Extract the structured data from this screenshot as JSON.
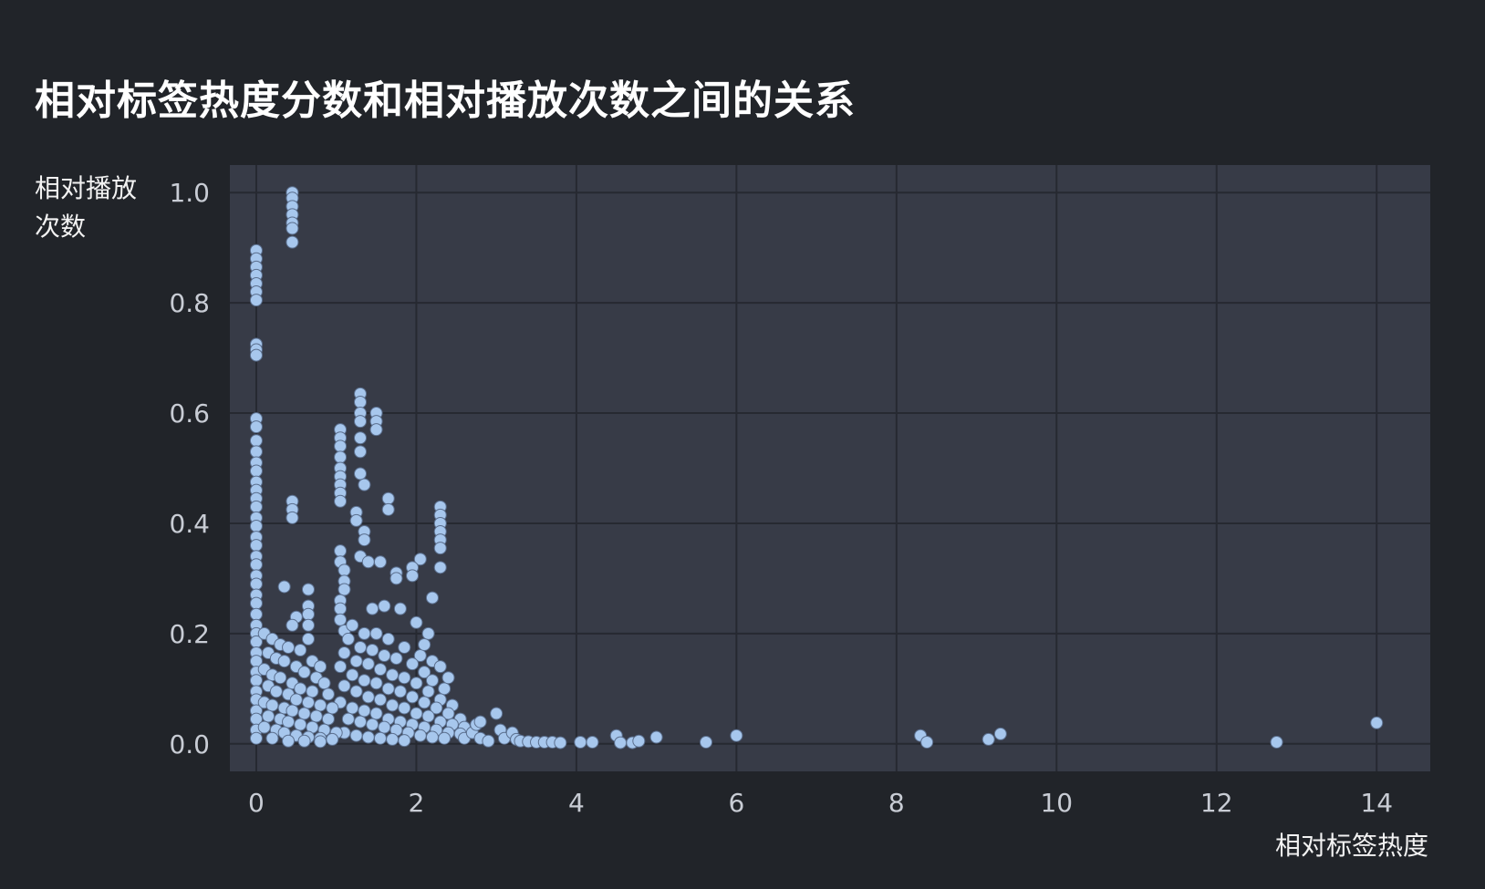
{
  "chart_data": {
    "type": "scatter",
    "title": "相对标签热度分数和相对播放次数之间的关系",
    "xlabel": "相对标签热度",
    "ylabel": "相对播放次数",
    "xlim": [
      -0.33,
      14.67
    ],
    "ylim": [
      -0.05,
      1.05
    ],
    "xticks": [
      0,
      2,
      4,
      6,
      8,
      10,
      12,
      14
    ],
    "yticks": [
      0.0,
      0.2,
      0.4,
      0.6,
      0.8,
      1.0
    ],
    "ytick_labels": [
      "0.0",
      "0.2",
      "0.4",
      "0.6",
      "0.8",
      "1.0"
    ],
    "grid": true,
    "point_color": "#a7c7ed",
    "point_edge": "#5b6f8e",
    "plot_background": "#373b47",
    "figure_background": "#212429",
    "points": [
      [
        0.0,
        0.895
      ],
      [
        0.0,
        0.88
      ],
      [
        0.0,
        0.865
      ],
      [
        0.0,
        0.85
      ],
      [
        0.0,
        0.835
      ],
      [
        0.0,
        0.82
      ],
      [
        0.0,
        0.805
      ],
      [
        0.0,
        0.725
      ],
      [
        0.0,
        0.715
      ],
      [
        0.0,
        0.705
      ],
      [
        0.45,
        1.0
      ],
      [
        0.45,
        0.99
      ],
      [
        0.45,
        0.975
      ],
      [
        0.45,
        0.96
      ],
      [
        0.45,
        0.945
      ],
      [
        0.45,
        0.935
      ],
      [
        0.45,
        0.91
      ],
      [
        0.0,
        0.59
      ],
      [
        0.0,
        0.575
      ],
      [
        0.0,
        0.55
      ],
      [
        0.0,
        0.53
      ],
      [
        0.0,
        0.51
      ],
      [
        0.0,
        0.495
      ],
      [
        0.0,
        0.475
      ],
      [
        0.0,
        0.46
      ],
      [
        0.0,
        0.445
      ],
      [
        0.0,
        0.43
      ],
      [
        0.0,
        0.41
      ],
      [
        0.0,
        0.395
      ],
      [
        0.0,
        0.375
      ],
      [
        0.0,
        0.36
      ],
      [
        0.0,
        0.34
      ],
      [
        0.0,
        0.325
      ],
      [
        0.0,
        0.305
      ],
      [
        0.0,
        0.29
      ],
      [
        0.0,
        0.27
      ],
      [
        0.0,
        0.255
      ],
      [
        0.0,
        0.235
      ],
      [
        0.0,
        0.215
      ],
      [
        0.0,
        0.2
      ],
      [
        0.0,
        0.185
      ],
      [
        0.0,
        0.165
      ],
      [
        0.0,
        0.15
      ],
      [
        0.0,
        0.13
      ],
      [
        0.0,
        0.115
      ],
      [
        0.0,
        0.095
      ],
      [
        0.0,
        0.08
      ],
      [
        0.0,
        0.06
      ],
      [
        0.0,
        0.045
      ],
      [
        0.0,
        0.025
      ],
      [
        0.0,
        0.01
      ],
      [
        0.45,
        0.44
      ],
      [
        0.45,
        0.425
      ],
      [
        0.45,
        0.41
      ],
      [
        0.35,
        0.285
      ],
      [
        0.65,
        0.28
      ],
      [
        0.65,
        0.25
      ],
      [
        0.65,
        0.235
      ],
      [
        0.65,
        0.215
      ],
      [
        0.65,
        0.19
      ],
      [
        0.5,
        0.23
      ],
      [
        0.45,
        0.215
      ],
      [
        1.05,
        0.57
      ],
      [
        1.05,
        0.555
      ],
      [
        1.05,
        0.54
      ],
      [
        1.05,
        0.52
      ],
      [
        1.05,
        0.5
      ],
      [
        1.05,
        0.485
      ],
      [
        1.05,
        0.47
      ],
      [
        1.05,
        0.455
      ],
      [
        1.05,
        0.44
      ],
      [
        1.3,
        0.635
      ],
      [
        1.3,
        0.62
      ],
      [
        1.3,
        0.6
      ],
      [
        1.3,
        0.585
      ],
      [
        1.3,
        0.555
      ],
      [
        1.3,
        0.53
      ],
      [
        1.3,
        0.49
      ],
      [
        1.5,
        0.6
      ],
      [
        1.5,
        0.585
      ],
      [
        1.5,
        0.57
      ],
      [
        1.35,
        0.47
      ],
      [
        1.65,
        0.445
      ],
      [
        1.65,
        0.425
      ],
      [
        1.25,
        0.42
      ],
      [
        1.25,
        0.405
      ],
      [
        1.35,
        0.385
      ],
      [
        1.35,
        0.37
      ],
      [
        1.3,
        0.34
      ],
      [
        2.3,
        0.43
      ],
      [
        2.3,
        0.415
      ],
      [
        2.3,
        0.4
      ],
      [
        2.3,
        0.385
      ],
      [
        2.3,
        0.37
      ],
      [
        2.3,
        0.355
      ],
      [
        2.3,
        0.32
      ],
      [
        2.05,
        0.335
      ],
      [
        1.95,
        0.32
      ],
      [
        1.95,
        0.305
      ],
      [
        1.75,
        0.31
      ],
      [
        1.75,
        0.3
      ],
      [
        1.55,
        0.33
      ],
      [
        1.4,
        0.33
      ],
      [
        2.2,
        0.265
      ],
      [
        1.8,
        0.245
      ],
      [
        1.6,
        0.25
      ],
      [
        1.45,
        0.245
      ],
      [
        2.0,
        0.22
      ],
      [
        1.05,
        0.35
      ],
      [
        1.05,
        0.33
      ],
      [
        1.1,
        0.315
      ],
      [
        1.1,
        0.295
      ],
      [
        1.1,
        0.28
      ],
      [
        1.05,
        0.26
      ],
      [
        1.05,
        0.245
      ],
      [
        1.05,
        0.225
      ],
      [
        1.1,
        0.205
      ],
      [
        1.2,
        0.215
      ],
      [
        1.35,
        0.2
      ],
      [
        1.5,
        0.2
      ],
      [
        1.65,
        0.19
      ],
      [
        1.85,
        0.175
      ],
      [
        2.05,
        0.16
      ],
      [
        1.15,
        0.19
      ],
      [
        1.3,
        0.175
      ],
      [
        1.45,
        0.17
      ],
      [
        1.6,
        0.16
      ],
      [
        1.75,
        0.155
      ],
      [
        1.95,
        0.145
      ],
      [
        2.1,
        0.13
      ],
      [
        2.2,
        0.115
      ],
      [
        2.35,
        0.1
      ],
      [
        1.1,
        0.165
      ],
      [
        1.25,
        0.15
      ],
      [
        1.4,
        0.145
      ],
      [
        1.55,
        0.135
      ],
      [
        1.7,
        0.125
      ],
      [
        1.85,
        0.12
      ],
      [
        2.0,
        0.11
      ],
      [
        2.15,
        0.095
      ],
      [
        2.3,
        0.08
      ],
      [
        2.45,
        0.07
      ],
      [
        1.05,
        0.14
      ],
      [
        1.2,
        0.125
      ],
      [
        1.35,
        0.115
      ],
      [
        1.5,
        0.11
      ],
      [
        1.65,
        0.1
      ],
      [
        1.8,
        0.095
      ],
      [
        1.95,
        0.085
      ],
      [
        2.1,
        0.075
      ],
      [
        2.25,
        0.065
      ],
      [
        2.4,
        0.055
      ],
      [
        2.55,
        0.045
      ],
      [
        1.1,
        0.105
      ],
      [
        1.25,
        0.095
      ],
      [
        1.4,
        0.085
      ],
      [
        1.55,
        0.08
      ],
      [
        1.7,
        0.07
      ],
      [
        1.85,
        0.065
      ],
      [
        2.0,
        0.055
      ],
      [
        2.15,
        0.05
      ],
      [
        2.3,
        0.04
      ],
      [
        2.45,
        0.035
      ],
      [
        2.6,
        0.03
      ],
      [
        1.05,
        0.075
      ],
      [
        1.2,
        0.065
      ],
      [
        1.35,
        0.06
      ],
      [
        1.5,
        0.055
      ],
      [
        1.65,
        0.045
      ],
      [
        1.8,
        0.04
      ],
      [
        1.95,
        0.035
      ],
      [
        2.1,
        0.03
      ],
      [
        2.25,
        0.025
      ],
      [
        2.4,
        0.02
      ],
      [
        2.55,
        0.018
      ],
      [
        1.15,
        0.045
      ],
      [
        1.3,
        0.04
      ],
      [
        1.45,
        0.035
      ],
      [
        1.6,
        0.03
      ],
      [
        1.75,
        0.025
      ],
      [
        1.9,
        0.02
      ],
      [
        2.05,
        0.015
      ],
      [
        2.2,
        0.012
      ],
      [
        2.35,
        0.01
      ],
      [
        1.1,
        0.02
      ],
      [
        1.25,
        0.015
      ],
      [
        1.4,
        0.012
      ],
      [
        1.55,
        0.01
      ],
      [
        1.7,
        0.008
      ],
      [
        1.85,
        0.006
      ],
      [
        0.1,
        0.2
      ],
      [
        0.2,
        0.19
      ],
      [
        0.3,
        0.18
      ],
      [
        0.4,
        0.175
      ],
      [
        0.55,
        0.17
      ],
      [
        0.7,
        0.15
      ],
      [
        0.8,
        0.14
      ],
      [
        0.15,
        0.165
      ],
      [
        0.25,
        0.155
      ],
      [
        0.35,
        0.15
      ],
      [
        0.5,
        0.14
      ],
      [
        0.6,
        0.13
      ],
      [
        0.75,
        0.12
      ],
      [
        0.85,
        0.11
      ],
      [
        0.1,
        0.135
      ],
      [
        0.2,
        0.125
      ],
      [
        0.3,
        0.12
      ],
      [
        0.45,
        0.11
      ],
      [
        0.55,
        0.1
      ],
      [
        0.7,
        0.095
      ],
      [
        0.9,
        0.09
      ],
      [
        0.15,
        0.105
      ],
      [
        0.25,
        0.095
      ],
      [
        0.4,
        0.09
      ],
      [
        0.5,
        0.08
      ],
      [
        0.65,
        0.075
      ],
      [
        0.8,
        0.07
      ],
      [
        0.95,
        0.065
      ],
      [
        0.1,
        0.075
      ],
      [
        0.2,
        0.07
      ],
      [
        0.35,
        0.065
      ],
      [
        0.45,
        0.06
      ],
      [
        0.6,
        0.055
      ],
      [
        0.75,
        0.05
      ],
      [
        0.9,
        0.045
      ],
      [
        0.15,
        0.05
      ],
      [
        0.3,
        0.045
      ],
      [
        0.4,
        0.04
      ],
      [
        0.55,
        0.035
      ],
      [
        0.7,
        0.03
      ],
      [
        0.85,
        0.025
      ],
      [
        1.0,
        0.02
      ],
      [
        0.1,
        0.03
      ],
      [
        0.25,
        0.025
      ],
      [
        0.35,
        0.02
      ],
      [
        0.5,
        0.015
      ],
      [
        0.65,
        0.012
      ],
      [
        0.8,
        0.01
      ],
      [
        0.95,
        0.008
      ],
      [
        0.2,
        0.01
      ],
      [
        0.4,
        0.005
      ],
      [
        0.6,
        0.005
      ],
      [
        0.8,
        0.004
      ],
      [
        2.15,
        0.2
      ],
      [
        2.1,
        0.18
      ],
      [
        2.2,
        0.15
      ],
      [
        2.4,
        0.12
      ],
      [
        2.3,
        0.14
      ],
      [
        2.6,
        0.01
      ],
      [
        2.7,
        0.02
      ],
      [
        2.8,
        0.01
      ],
      [
        2.9,
        0.005
      ],
      [
        2.75,
        0.035
      ],
      [
        2.8,
        0.04
      ],
      [
        3.0,
        0.055
      ],
      [
        3.05,
        0.025
      ],
      [
        3.1,
        0.01
      ],
      [
        3.2,
        0.02
      ],
      [
        3.25,
        0.008
      ],
      [
        3.3,
        0.005
      ],
      [
        3.4,
        0.004
      ],
      [
        3.5,
        0.003
      ],
      [
        3.6,
        0.003
      ],
      [
        3.7,
        0.003
      ],
      [
        3.8,
        0.002
      ],
      [
        4.05,
        0.003
      ],
      [
        4.2,
        0.003
      ],
      [
        4.5,
        0.015
      ],
      [
        4.55,
        0.002
      ],
      [
        4.7,
        0.002
      ],
      [
        4.78,
        0.005
      ],
      [
        5.0,
        0.012
      ],
      [
        5.62,
        0.003
      ],
      [
        6.0,
        0.015
      ],
      [
        8.3,
        0.015
      ],
      [
        8.38,
        0.003
      ],
      [
        9.15,
        0.008
      ],
      [
        9.3,
        0.018
      ],
      [
        12.75,
        0.003
      ],
      [
        14.0,
        0.038
      ]
    ]
  }
}
